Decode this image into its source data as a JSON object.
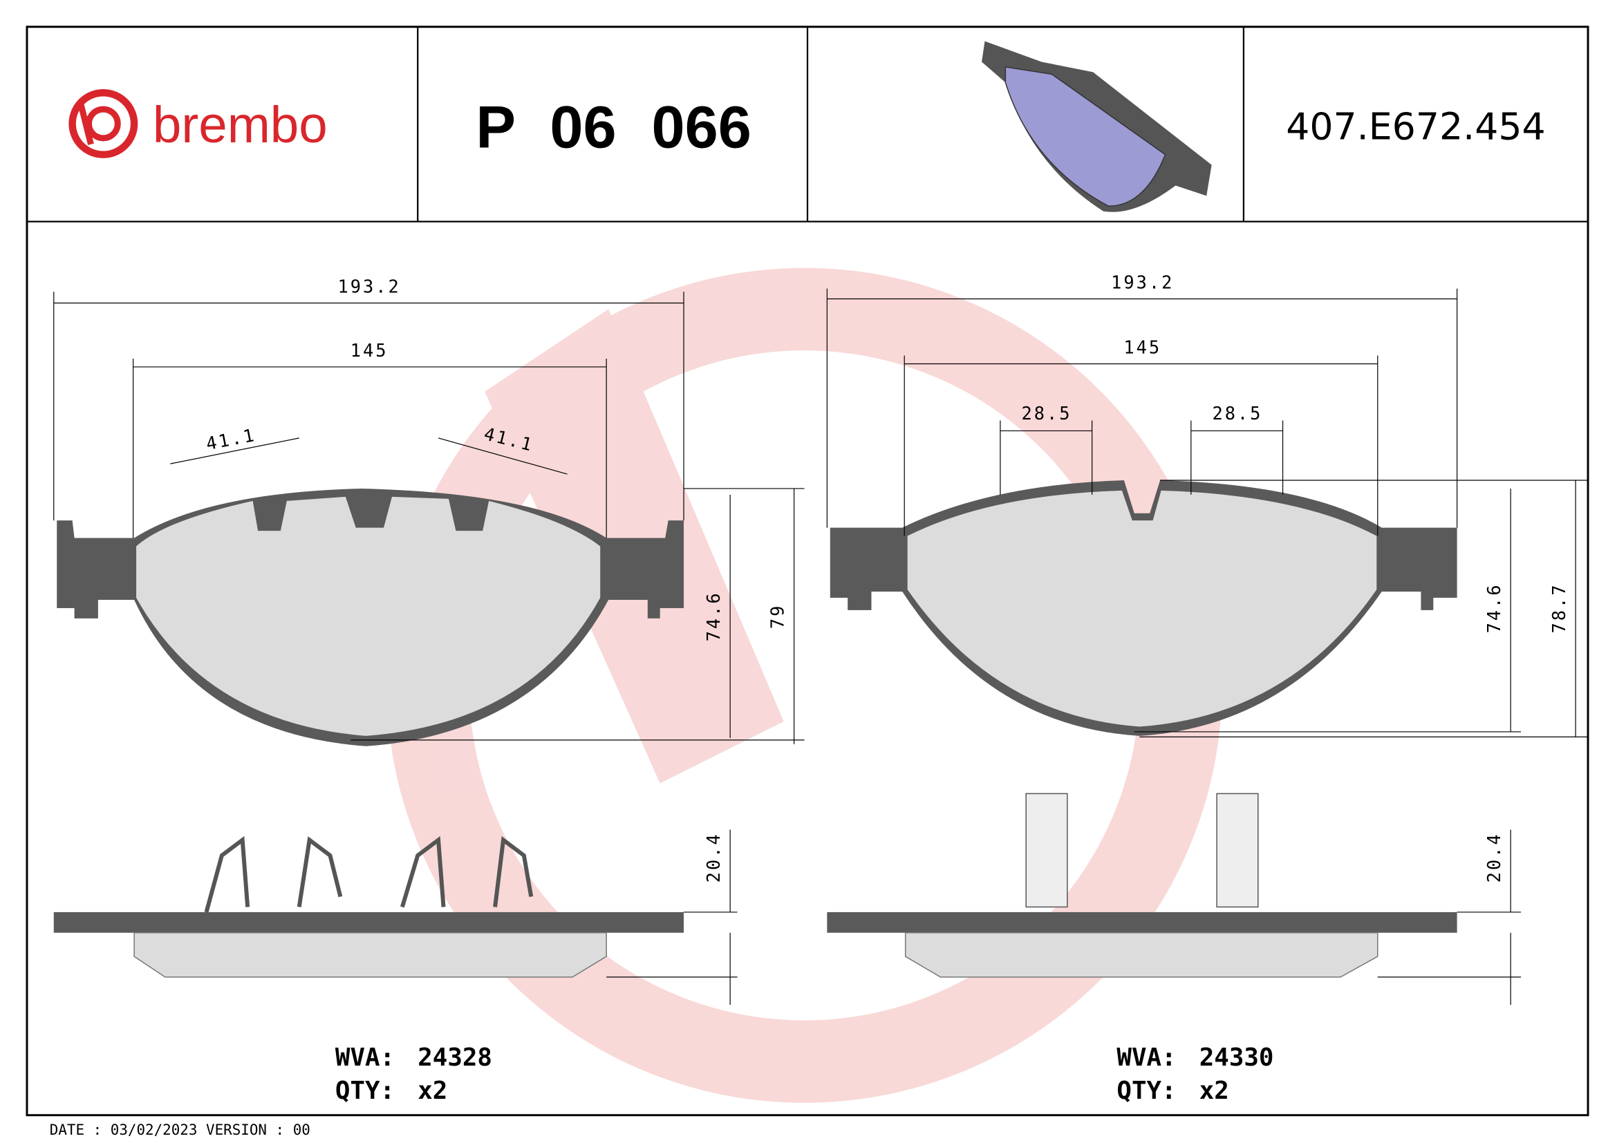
{
  "header": {
    "brand": "brembo",
    "part_number": "P 06 066",
    "code": "407.E672.454"
  },
  "left": {
    "dims": [
      "193.2",
      "145",
      "41.1",
      "41.1",
      "74.6",
      "79",
      "20.4"
    ],
    "wva_label": "WVA:",
    "wva": "24328",
    "qty_label": "QTY:",
    "qty": "x2"
  },
  "right": {
    "dims": [
      "193.2",
      "145",
      "28.5",
      "28.5",
      "74.6",
      "78.7",
      "20.4"
    ],
    "wva_label": "WVA:",
    "wva": "24330",
    "qty_label": "QTY:",
    "qty": "x2"
  },
  "footer": {
    "date": "DATE : 03/02/2023 VERSION : 00"
  }
}
